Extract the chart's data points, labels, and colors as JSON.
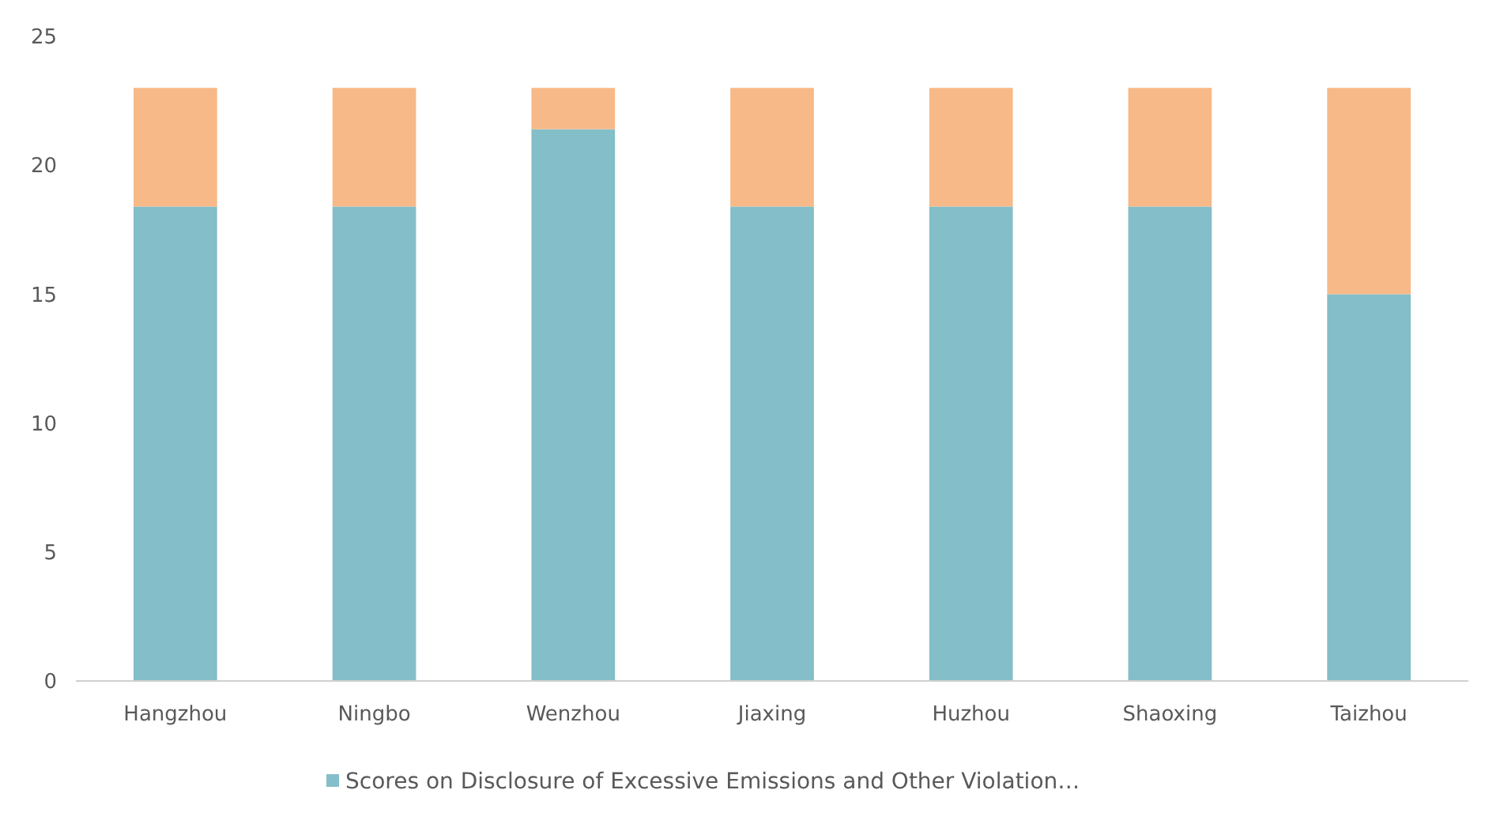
{
  "chart_data": {
    "type": "bar",
    "stacked": true,
    "categories": [
      "Hangzhou",
      "Ningbo",
      "Wenzhou",
      "Jiaxing",
      "Huzhou",
      "Shaoxing",
      "Taizhou"
    ],
    "series": [
      {
        "name": "Scores on Disclosure of Excessive Emissions and Other Violation…",
        "color": "#84bec8",
        "values": [
          18.4,
          18.4,
          21.4,
          18.4,
          18.4,
          18.4,
          15.0
        ]
      },
      {
        "color": "#f7b987",
        "values": [
          4.6,
          4.6,
          1.6,
          4.6,
          4.6,
          4.6,
          8.0
        ]
      }
    ],
    "ylim": [
      0,
      25
    ],
    "yticks": [
      0,
      5,
      10,
      15,
      20,
      25
    ],
    "grid": false,
    "legend": "bottom"
  }
}
